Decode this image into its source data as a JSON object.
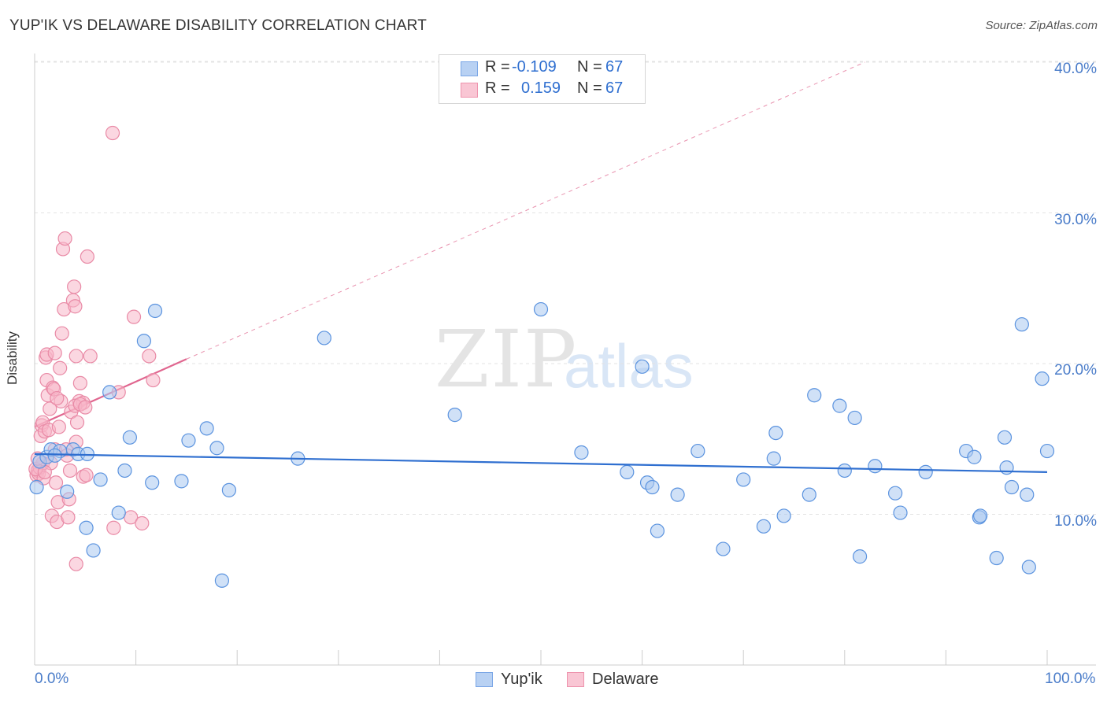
{
  "title": "YUP'IK VS DELAWARE DISABILITY CORRELATION CHART",
  "source": "Source: ZipAtlas.com",
  "watermark": {
    "zip": "ZIP",
    "atlas": "atlas"
  },
  "legend": {
    "rows": [
      {
        "label": "R =",
        "r": "-0.109",
        "n_label": "N =",
        "n": "67",
        "color": "#b8d1f3",
        "border": "#7aa6e6"
      },
      {
        "label": "R =",
        "r": "0.159",
        "n_label": "N =",
        "n": "67",
        "color": "#f9c6d4",
        "border": "#ee93ad"
      }
    ]
  },
  "bottom_legend": [
    {
      "name": "Yup'ik",
      "color": "#b8d1f3",
      "border": "#7aa6e6"
    },
    {
      "name": "Delaware",
      "color": "#f9c6d4",
      "border": "#ee93ad"
    }
  ],
  "colors": {
    "blue_fill": "#a9c8f0",
    "blue_stroke": "#5b93df",
    "blue_line": "#2f6fd0",
    "pink_fill": "#f7b6c9",
    "pink_stroke": "#e98aa6",
    "pink_line": "#e0668f",
    "grid": "#e3e3e3",
    "axis": "#cccccc",
    "tick_label": "#4a7cc9"
  },
  "chart_data": {
    "type": "scatter",
    "title": "YUP'IK VS DELAWARE DISABILITY CORRELATION CHART",
    "xlabel": "",
    "ylabel": "Disability",
    "xlim": [
      0,
      100
    ],
    "ylim": [
      0,
      42
    ],
    "yticks": [
      10,
      20,
      30,
      40
    ],
    "ytick_labels": [
      "10.0%",
      "20.0%",
      "30.0%",
      "40.0%"
    ],
    "xtick_labels": [
      "0.0%",
      "100.0%"
    ],
    "series": [
      {
        "name": "Yup'ik",
        "r": -0.109,
        "n": 67,
        "trend": {
          "x": [
            0,
            100
          ],
          "y": [
            14.0,
            12.8
          ]
        },
        "points": [
          [
            0.2,
            11.8
          ],
          [
            0.5,
            13.5
          ],
          [
            1.2,
            13.8
          ],
          [
            1.6,
            14.3
          ],
          [
            2.5,
            14.2
          ],
          [
            2.0,
            13.9
          ],
          [
            3.2,
            11.5
          ],
          [
            3.8,
            14.3
          ],
          [
            4.3,
            14.0
          ],
          [
            5.2,
            14.0
          ],
          [
            5.1,
            9.1
          ],
          [
            5.8,
            7.6
          ],
          [
            6.5,
            12.3
          ],
          [
            7.4,
            18.1
          ],
          [
            8.3,
            10.1
          ],
          [
            8.9,
            12.9
          ],
          [
            9.4,
            15.1
          ],
          [
            10.8,
            21.5
          ],
          [
            11.6,
            12.1
          ],
          [
            11.9,
            23.5
          ],
          [
            14.5,
            12.2
          ],
          [
            15.2,
            14.9
          ],
          [
            17.0,
            15.7
          ],
          [
            18.0,
            14.4
          ],
          [
            18.5,
            5.6
          ],
          [
            19.2,
            11.6
          ],
          [
            26.0,
            13.7
          ],
          [
            28.6,
            21.7
          ],
          [
            41.5,
            16.6
          ],
          [
            50.0,
            23.6
          ],
          [
            54.0,
            14.1
          ],
          [
            58.5,
            12.8
          ],
          [
            60.0,
            19.8
          ],
          [
            60.5,
            12.1
          ],
          [
            61.0,
            11.8
          ],
          [
            61.5,
            8.9
          ],
          [
            63.5,
            11.3
          ],
          [
            65.5,
            14.2
          ],
          [
            68.0,
            7.7
          ],
          [
            70.0,
            12.3
          ],
          [
            72.0,
            9.2
          ],
          [
            73.0,
            13.7
          ],
          [
            73.2,
            15.4
          ],
          [
            74.0,
            9.9
          ],
          [
            76.5,
            11.3
          ],
          [
            77.0,
            17.9
          ],
          [
            79.5,
            17.2
          ],
          [
            80.0,
            12.9
          ],
          [
            81.0,
            16.4
          ],
          [
            81.5,
            7.2
          ],
          [
            83.0,
            13.2
          ],
          [
            85.0,
            11.4
          ],
          [
            85.5,
            10.1
          ],
          [
            88.0,
            12.8
          ],
          [
            92.0,
            14.2
          ],
          [
            92.8,
            13.8
          ],
          [
            93.3,
            9.8
          ],
          [
            93.4,
            9.9
          ],
          [
            95.0,
            7.1
          ],
          [
            95.8,
            15.1
          ],
          [
            96.0,
            13.1
          ],
          [
            96.5,
            11.8
          ],
          [
            97.5,
            22.6
          ],
          [
            98.0,
            11.3
          ],
          [
            98.2,
            6.5
          ],
          [
            99.5,
            19.0
          ],
          [
            100.0,
            14.2
          ]
        ]
      },
      {
        "name": "Delaware",
        "r": 0.159,
        "n": 67,
        "trend": {
          "x": [
            0,
            15
          ],
          "y": [
            15.8,
            20.3
          ]
        },
        "trend_extended": {
          "x": [
            15,
            82
          ],
          "y": [
            20.3,
            40.0
          ]
        },
        "points": [
          [
            0.2,
            12.6
          ],
          [
            0.3,
            12.9
          ],
          [
            0.4,
            12.7
          ],
          [
            0.5,
            13.1
          ],
          [
            0.6,
            15.2
          ],
          [
            0.7,
            15.9
          ],
          [
            0.8,
            16.1
          ],
          [
            0.8,
            13.4
          ],
          [
            0.9,
            12.4
          ],
          [
            1.0,
            15.5
          ],
          [
            1.1,
            20.4
          ],
          [
            1.2,
            20.6
          ],
          [
            1.2,
            18.9
          ],
          [
            1.3,
            17.9
          ],
          [
            1.4,
            15.6
          ],
          [
            1.5,
            17.0
          ],
          [
            1.6,
            13.4
          ],
          [
            1.7,
            9.9
          ],
          [
            1.8,
            18.4
          ],
          [
            1.9,
            18.3
          ],
          [
            2.0,
            20.7
          ],
          [
            2.0,
            14.3
          ],
          [
            2.1,
            12.1
          ],
          [
            2.2,
            9.5
          ],
          [
            2.3,
            10.8
          ],
          [
            2.4,
            15.8
          ],
          [
            2.5,
            19.7
          ],
          [
            2.6,
            17.5
          ],
          [
            2.7,
            22.0
          ],
          [
            2.8,
            27.6
          ],
          [
            2.9,
            23.6
          ],
          [
            3.0,
            28.3
          ],
          [
            3.1,
            14.3
          ],
          [
            3.2,
            13.9
          ],
          [
            3.3,
            9.8
          ],
          [
            3.4,
            11.0
          ],
          [
            3.5,
            12.9
          ],
          [
            3.6,
            16.8
          ],
          [
            3.8,
            24.2
          ],
          [
            3.9,
            25.1
          ],
          [
            4.0,
            23.8
          ],
          [
            4.1,
            20.5
          ],
          [
            4.2,
            16.1
          ],
          [
            4.4,
            17.5
          ],
          [
            4.5,
            18.7
          ],
          [
            4.8,
            17.4
          ],
          [
            4.0,
            17.2
          ],
          [
            4.1,
            14.8
          ],
          [
            4.1,
            6.7
          ],
          [
            4.5,
            17.3
          ],
          [
            4.8,
            12.5
          ],
          [
            5.0,
            17.1
          ],
          [
            5.1,
            12.6
          ],
          [
            5.2,
            27.1
          ],
          [
            5.5,
            20.5
          ],
          [
            7.7,
            35.3
          ],
          [
            7.8,
            9.1
          ],
          [
            8.3,
            18.1
          ],
          [
            9.5,
            9.8
          ],
          [
            9.8,
            23.1
          ],
          [
            10.6,
            9.4
          ],
          [
            11.3,
            20.5
          ],
          [
            11.7,
            18.9
          ],
          [
            0.1,
            13.0
          ],
          [
            0.3,
            13.7
          ],
          [
            1.0,
            12.8
          ],
          [
            2.2,
            17.7
          ]
        ]
      }
    ]
  }
}
